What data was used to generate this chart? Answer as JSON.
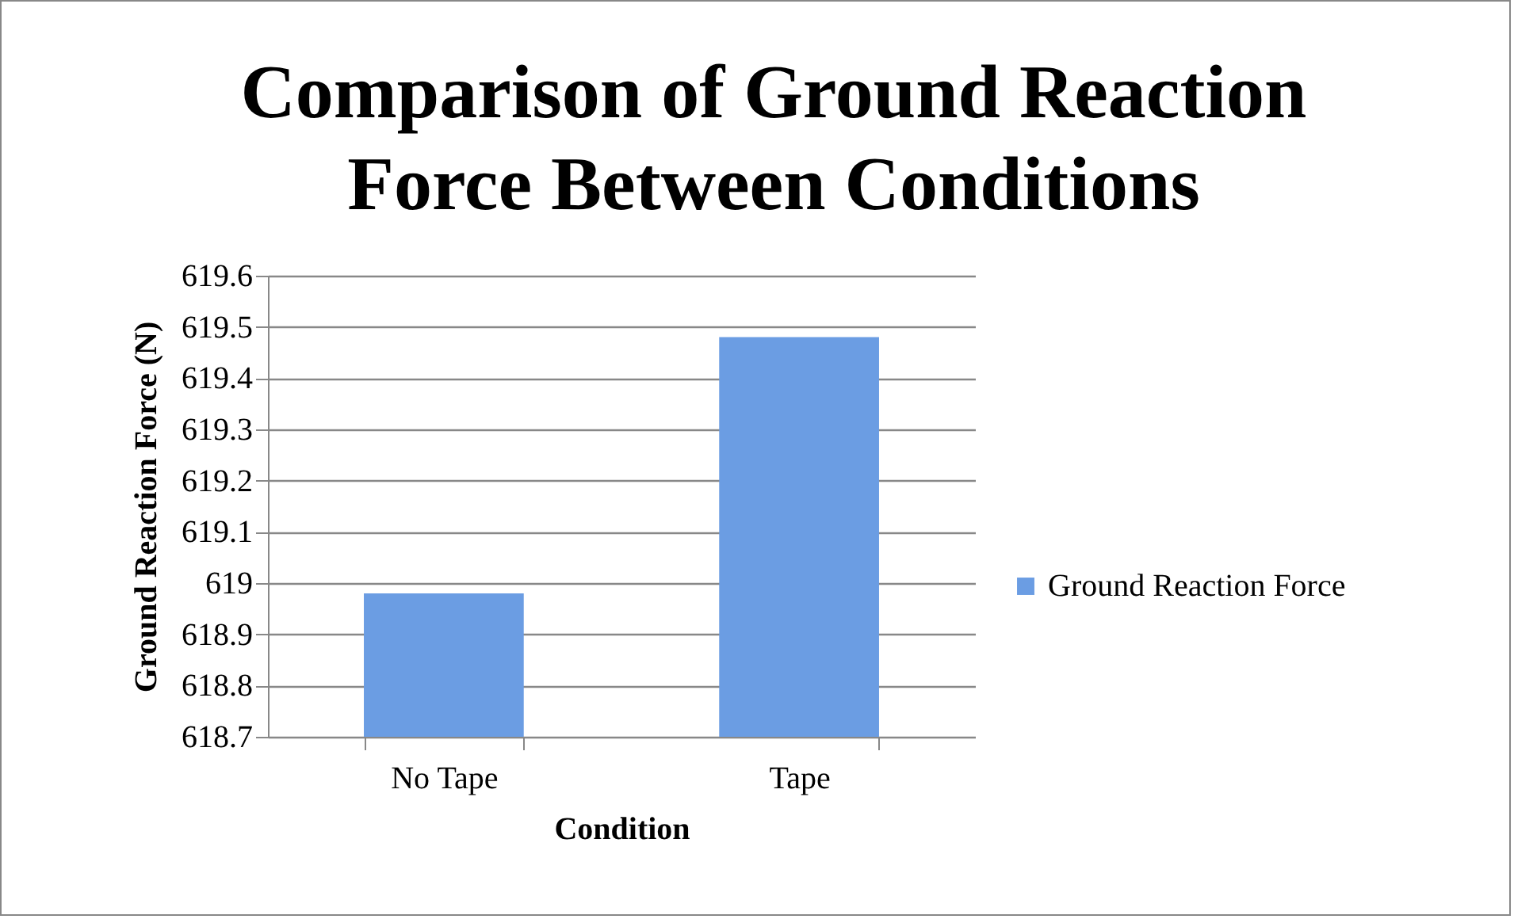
{
  "chart_data": {
    "type": "bar",
    "title": "Comparison of Ground Reaction Force Between Conditions",
    "xlabel": "Condition",
    "ylabel": "Ground Reaction Force (N)",
    "categories": [
      "No Tape",
      "Tape"
    ],
    "series": [
      {
        "name": "Ground Reaction Force",
        "color": "#6b9de3",
        "values": [
          618.98,
          619.48
        ]
      }
    ],
    "ylim": [
      618.7,
      619.6
    ],
    "yticks": [
      618.7,
      618.8,
      618.9,
      {
        "value": 619,
        "label": "619"
      },
      619.1,
      619.2,
      619.3,
      619.4,
      619.5,
      619.6
    ],
    "grid": "y",
    "legend": "right"
  }
}
